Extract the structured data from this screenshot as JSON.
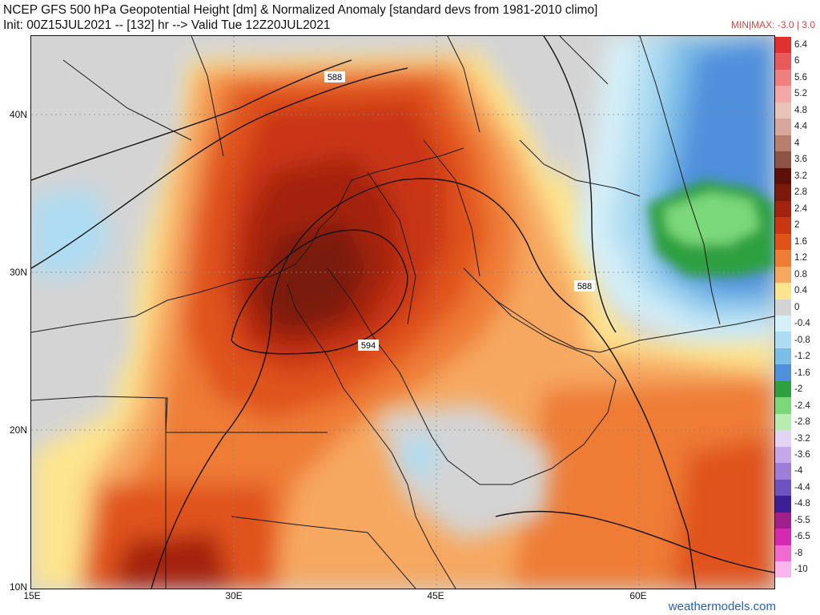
{
  "header": {
    "title": "NCEP GFS 500 hPa Geopotential Height [dm] & Normalized Anomaly [standard devs from 1981-2010 climo]",
    "subtitle": "Init: 00Z15JUL2021 -- [132] hr --> Valid Tue 12Z20JUL2021",
    "minmax": "MIN|MAX: -3.0 | 3.0"
  },
  "axes": {
    "lat_labels": [
      "40N",
      "30N",
      "20N",
      "10N"
    ],
    "lon_labels": [
      "15E",
      "30E",
      "45E",
      "60E"
    ]
  },
  "contours": {
    "labels": [
      "588",
      "588",
      "594"
    ]
  },
  "colorbar": {
    "ticks": [
      "6.4",
      "6",
      "5.6",
      "5.2",
      "4.8",
      "4.4",
      "4",
      "3.6",
      "3.2",
      "2.8",
      "2.4",
      "2",
      "1.6",
      "1.2",
      "0.8",
      "0.4",
      "0",
      "-0.4",
      "-0.8",
      "-1.2",
      "-1.6",
      "-2",
      "-2.4",
      "-2.8",
      "-3.2",
      "-3.6",
      "-4",
      "-4.4",
      "-4.8",
      "-5.5",
      "-6.5",
      "-8",
      "-10"
    ],
    "colors": [
      "#e03030",
      "#e85a5a",
      "#f07f7f",
      "#f5a6a6",
      "#e8c4b8",
      "#d6a79a",
      "#b57f6c",
      "#8c5444",
      "#5c1008",
      "#7a1a0a",
      "#a4230f",
      "#c93612",
      "#e0521a",
      "#ee7c34",
      "#f6a860",
      "#fde48e",
      "#d4d4d4",
      "#d6f0f8",
      "#aedcf2",
      "#7cbde8",
      "#4f8fdc",
      "#2ea040",
      "#7ad87a",
      "#b8ecb0",
      "#e2d4f2",
      "#c4a8ea",
      "#9c7ed9",
      "#6e52c0",
      "#3c1e96",
      "#a0208a",
      "#d42ab2",
      "#f06ad0",
      "#f8b6ea"
    ]
  },
  "credit": "weathermodels.com"
}
